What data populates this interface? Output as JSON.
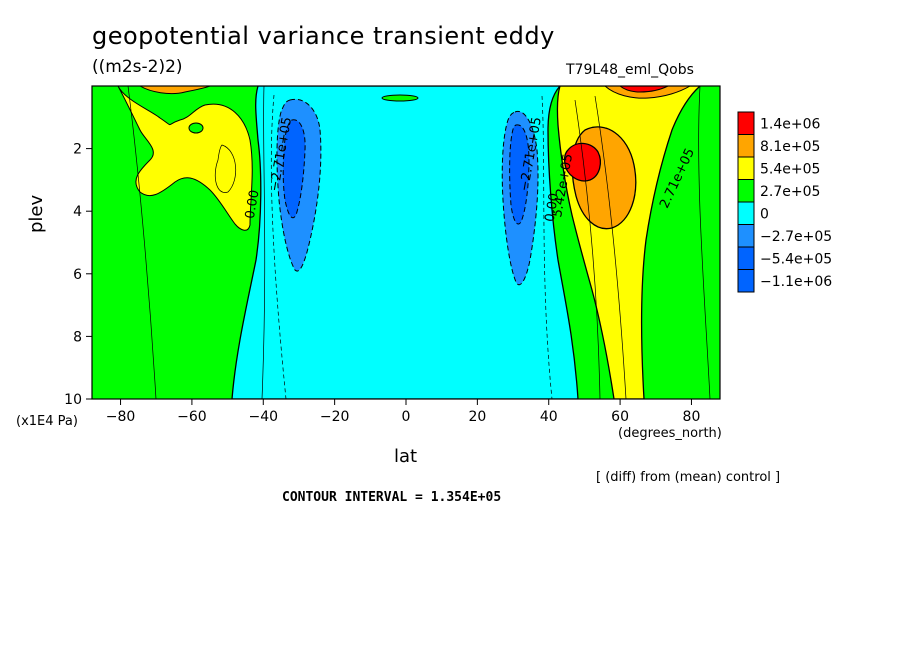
{
  "header": {
    "title": "geopotential variance transient eddy",
    "units": "((m2s-2)2)",
    "run_name": "T79L48_eml_Qobs"
  },
  "footer": {
    "vertical_unit": "(x1E4 Pa)",
    "x_unit": "(degrees_north)",
    "diff_note": "[ (diff) from (mean) control ]",
    "contour_interval": "CONTOUR INTERVAL = 1.354E+05"
  },
  "colors": {
    "red": "#ff0000",
    "orange": "#ffa500",
    "yellow": "#ffff00",
    "green": "#00ff00",
    "cyan": "#00ffff",
    "mid_blue": "#1e90ff",
    "blue": "#0064ff"
  },
  "colorbar": [
    {
      "label": "1.4e+06",
      "color": "#ff0000"
    },
    {
      "label": "8.1e+05",
      "color": "#ffa500"
    },
    {
      "label": "5.4e+05",
      "color": "#ffff00"
    },
    {
      "label": "2.7e+05",
      "color": "#00ff00"
    },
    {
      "label": "0",
      "color": "#00ffff"
    },
    {
      "label": "−2.7e+05",
      "color": "#1e90ff"
    },
    {
      "label": "−5.4e+05",
      "color": "#0064ff"
    },
    {
      "label": "−1.1e+06",
      "color": "#0064ff"
    }
  ],
  "chart_data": {
    "type": "heatmap",
    "title": "geopotential variance transient eddy",
    "xlabel": "lat",
    "ylabel": "plev",
    "xlim": [
      -88,
      88
    ],
    "ylim": [
      10,
      0
    ],
    "x_ticks": [
      -80,
      -60,
      -40,
      -20,
      0,
      20,
      40,
      60,
      80
    ],
    "x_tick_labels": [
      "−80",
      "−60",
      "−40",
      "−20",
      "0",
      "20",
      "40",
      "60",
      "80"
    ],
    "y_ticks": [
      2,
      4,
      6,
      8,
      10
    ],
    "y_tick_labels": [
      "2",
      "4",
      "6",
      "8",
      "10"
    ],
    "grid": false,
    "contour_labels": [
      {
        "text": "−2.71e+05",
        "lat": -34,
        "plev": 2.2,
        "angle": -80
      },
      {
        "text": "0.00",
        "lat": -42,
        "plev": 3.8,
        "angle": -80
      },
      {
        "text": "−2.71e+05",
        "lat": 36,
        "plev": 2.2,
        "angle": -80
      },
      {
        "text": "0.00",
        "lat": 42,
        "plev": 3.9,
        "angle": -80
      },
      {
        "text": "5.42e+05",
        "lat": 45,
        "plev": 3.2,
        "angle": -80
      },
      {
        "text": "2.71e+05",
        "lat": 77,
        "plev": 3.0,
        "angle": -65
      }
    ],
    "regions": [
      {
        "level": "yellow",
        "lat": [
          -78,
          -42
        ],
        "plev": [
          0.5,
          4.6
        ],
        "note": "positive anomaly NH-south mid-lat"
      },
      {
        "level": "cyan",
        "lat": [
          -48,
          48
        ],
        "plev": [
          0.1,
          10
        ],
        "note": "near-zero / weak negative tropics"
      },
      {
        "level": "blue",
        "lat": [
          -37,
          -27
        ],
        "plev": [
          1.0,
          6.0
        ],
        "note": "negative minimum SH"
      },
      {
        "level": "blue",
        "lat": [
          28,
          38
        ],
        "plev": [
          1.0,
          6.4
        ],
        "note": "negative minimum NH"
      },
      {
        "level": "orange",
        "lat": [
          42,
          62
        ],
        "plev": [
          0.5,
          4.8
        ],
        "note": "positive NH"
      },
      {
        "level": "red",
        "lat": [
          45,
          54
        ],
        "plev": [
          1.8,
          3.2
        ],
        "note": "maximum ~1.4e+06"
      },
      {
        "level": "yellow",
        "lat": [
          52,
          70
        ],
        "plev": [
          0.1,
          10
        ],
        "note": "positive band NH"
      }
    ]
  }
}
